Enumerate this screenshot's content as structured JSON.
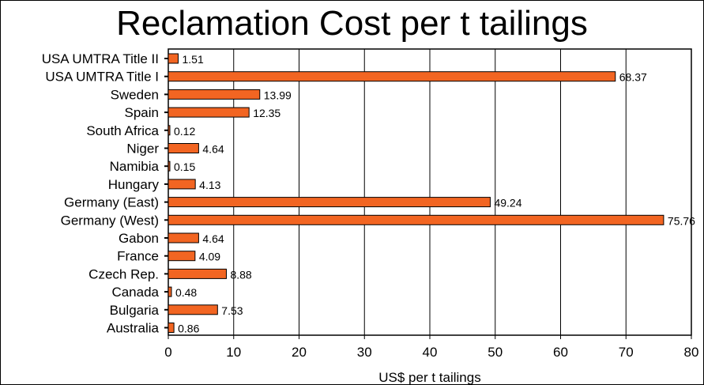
{
  "chart_data": {
    "type": "bar",
    "orientation": "horizontal",
    "title": "Reclamation Cost per t tailings",
    "xlabel": "US$ per t tailings",
    "ylabel": "",
    "xlim": [
      0,
      80
    ],
    "xticks": [
      0,
      10,
      20,
      30,
      40,
      50,
      60,
      70,
      80
    ],
    "grid": "vertical",
    "bar_color": "#f26522",
    "categories": [
      "USA UMTRA Title II",
      "USA UMTRA Title I",
      "Sweden",
      "Spain",
      "South Africa",
      "Niger",
      "Namibia",
      "Hungary",
      "Germany (East)",
      "Germany (West)",
      "Gabon",
      "France",
      "Czech Rep.",
      "Canada",
      "Bulgaria",
      "Australia"
    ],
    "values": [
      1.51,
      68.37,
      13.99,
      12.35,
      0.12,
      4.64,
      0.15,
      4.13,
      49.24,
      75.76,
      4.64,
      4.09,
      8.88,
      0.48,
      7.53,
      0.86
    ],
    "value_labels": [
      "1.51",
      "68.37",
      "13.99",
      "12.35",
      "0.12",
      "4.64",
      "0.15",
      "4.13",
      "49.24",
      "75.76",
      "4.64",
      "4.09",
      "8.88",
      "0.48",
      "7.53",
      "0.86"
    ]
  }
}
